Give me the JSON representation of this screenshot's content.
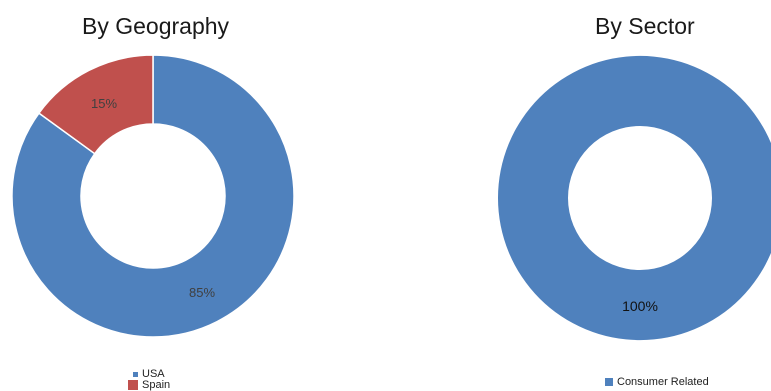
{
  "colors": {
    "usa": "#4f81bd",
    "spain": "#c0504d",
    "consumer_related": "#4f81bd"
  },
  "chart_data": [
    {
      "type": "pie",
      "title": "By Geography",
      "donut": true,
      "slices": [
        {
          "label": "USA",
          "value": 85,
          "data_label": "85%"
        },
        {
          "label": "Spain",
          "value": 15,
          "data_label": "15%"
        }
      ],
      "legend": [
        "USA",
        "Spain"
      ],
      "legend_position": "bottom"
    },
    {
      "type": "pie",
      "title": "By Sector",
      "donut": true,
      "slices": [
        {
          "label": "Consumer Related",
          "value": 100,
          "data_label": "100%"
        }
      ],
      "legend": [
        "Consumer Related"
      ],
      "legend_position": "bottom"
    }
  ]
}
